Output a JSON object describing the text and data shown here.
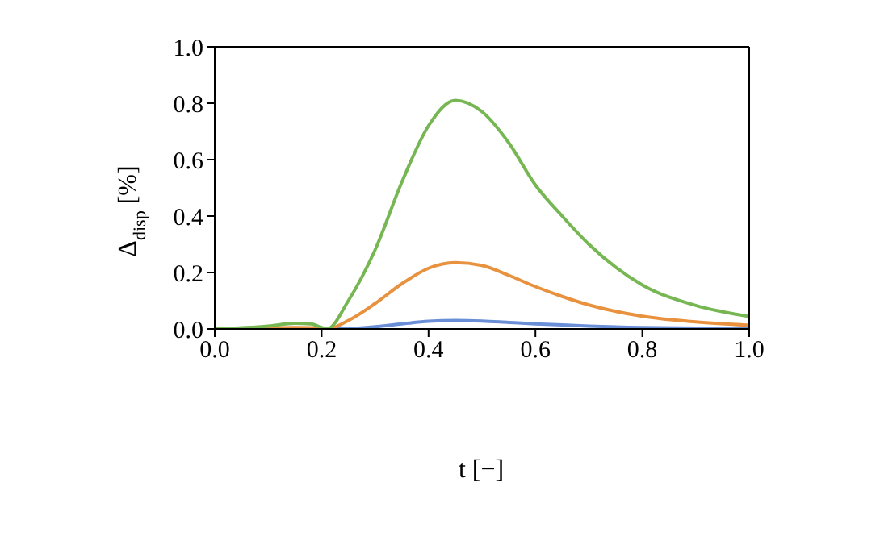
{
  "chart_data": {
    "type": "line",
    "xlabel": "t [−]",
    "ylabel": "Δ$_{disp}$ [%]",
    "x": [
      0,
      0.1,
      0.15,
      0.18,
      0.2,
      0.21,
      0.25,
      0.3,
      0.35,
      0.4,
      0.45,
      0.5,
      0.55,
      0.6,
      0.65,
      0.7,
      0.8,
      0.9,
      1.0
    ],
    "series": [
      {
        "color": "#6b8fd6",
        "values": [
          null,
          null,
          null,
          null,
          0,
          0,
          0.001,
          0.008,
          0.018,
          0.027,
          0.03,
          0.028,
          0.023,
          0.018,
          0.014,
          0.01,
          0.005,
          0.003,
          0.001
        ]
      },
      {
        "color": "#e8913f",
        "values": [
          0,
          0.003,
          0.005,
          0.004,
          0.001,
          0,
          0.03,
          0.09,
          0.16,
          0.215,
          0.235,
          0.225,
          0.19,
          0.15,
          0.115,
          0.085,
          0.045,
          0.025,
          0.013
        ]
      },
      {
        "color": "#77b753",
        "values": [
          0,
          0.01,
          0.02,
          0.018,
          0.005,
          0,
          0.1,
          0.28,
          0.52,
          0.72,
          0.81,
          0.77,
          0.66,
          0.51,
          0.4,
          0.3,
          0.156,
          0.083,
          0.044
        ]
      }
    ],
    "xlim": [
      0,
      1
    ],
    "ylim": [
      0,
      1
    ],
    "xticks": [
      {
        "value": 0,
        "label": "0.0"
      },
      0.2,
      0.4,
      0.6,
      0.8,
      {
        "value": 1,
        "label": "1.0"
      }
    ],
    "yticks": [
      {
        "value": 0,
        "label": "0.0"
      },
      0.2,
      0.4,
      0.6,
      0.8,
      {
        "value": 1,
        "label": "1.0"
      }
    ],
    "grid": false,
    "legend": false,
    "marker": "none",
    "line_style": "solid"
  }
}
